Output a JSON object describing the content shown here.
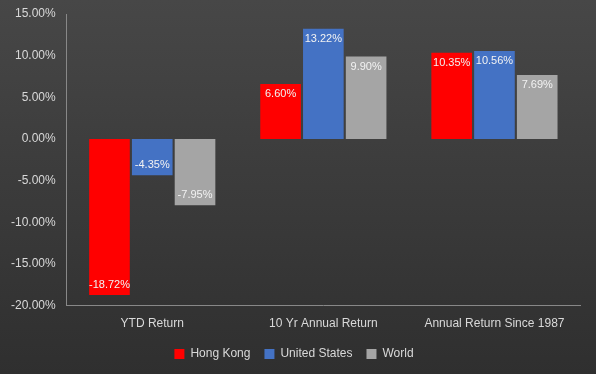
{
  "chart_data": {
    "type": "bar",
    "categories": [
      "YTD Return",
      "10 Yr Annual Return",
      "Annual Return Since 1987"
    ],
    "series": [
      {
        "name": "Hong Kong",
        "color": "#ff0000",
        "values": [
          -18.72,
          6.6,
          10.35
        ],
        "value_labels": [
          "-18.72%",
          "6.60%",
          "10.35%"
        ]
      },
      {
        "name": "United States",
        "color": "#4472c4",
        "values": [
          -4.35,
          13.22,
          10.56
        ],
        "value_labels": [
          "-4.35%",
          "13.22%",
          "10.56%"
        ]
      },
      {
        "name": "World",
        "color": "#a5a5a5",
        "values": [
          -7.95,
          9.9,
          7.69
        ],
        "value_labels": [
          "-7.95%",
          "9.90%",
          "7.69%"
        ]
      }
    ],
    "ylim": [
      -20,
      15
    ],
    "yticks": [
      {
        "value": -20,
        "label": "-20.00%"
      },
      {
        "value": -15,
        "label": "-15.00%"
      },
      {
        "value": -10,
        "label": "-10.00%"
      },
      {
        "value": -5,
        "label": "-5.00%"
      },
      {
        "value": 0,
        "label": "0.00%"
      },
      {
        "value": 5,
        "label": "5.00%"
      },
      {
        "value": 10,
        "label": "10.00%"
      },
      {
        "value": 15,
        "label": "15.00%"
      }
    ],
    "grid": false,
    "legend": "bottom",
    "data_labels": true
  }
}
